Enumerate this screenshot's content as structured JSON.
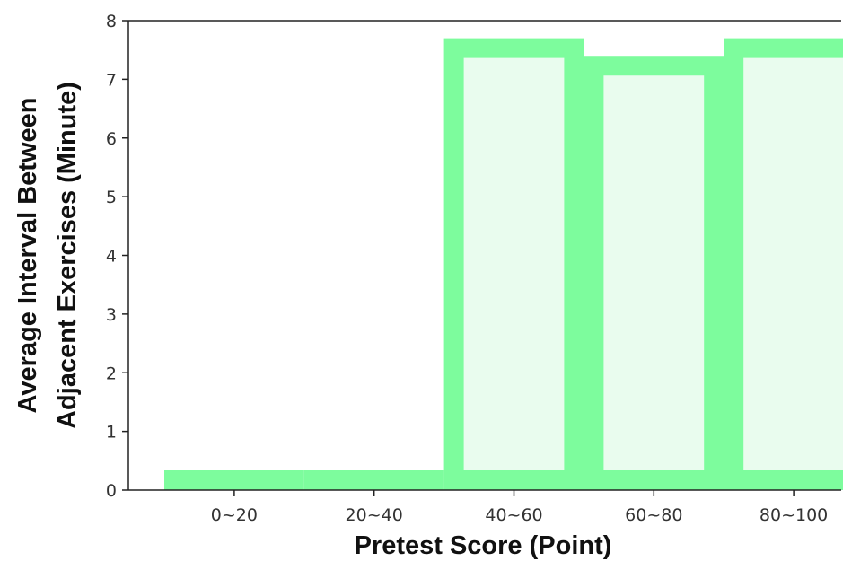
{
  "chart_data": {
    "type": "bar",
    "categories": [
      "0~20",
      "20~40",
      "40~60",
      "60~80",
      "80~100"
    ],
    "values": [
      0.15,
      0.15,
      7.7,
      7.4,
      7.7
    ],
    "title": "",
    "xlabel": "Pretest Score (Point)",
    "ylabel_lines": [
      "Average Interval Between",
      "Adjacent Exercises (Minute)"
    ],
    "ylim": [
      0,
      8
    ],
    "yticks": [
      0,
      1,
      2,
      3,
      4,
      5,
      6,
      7,
      8
    ],
    "grid": false,
    "colors": {
      "bar_edge": "#7dfc9d",
      "bar_fill": "#e9fcee",
      "axis": "#222222"
    }
  }
}
